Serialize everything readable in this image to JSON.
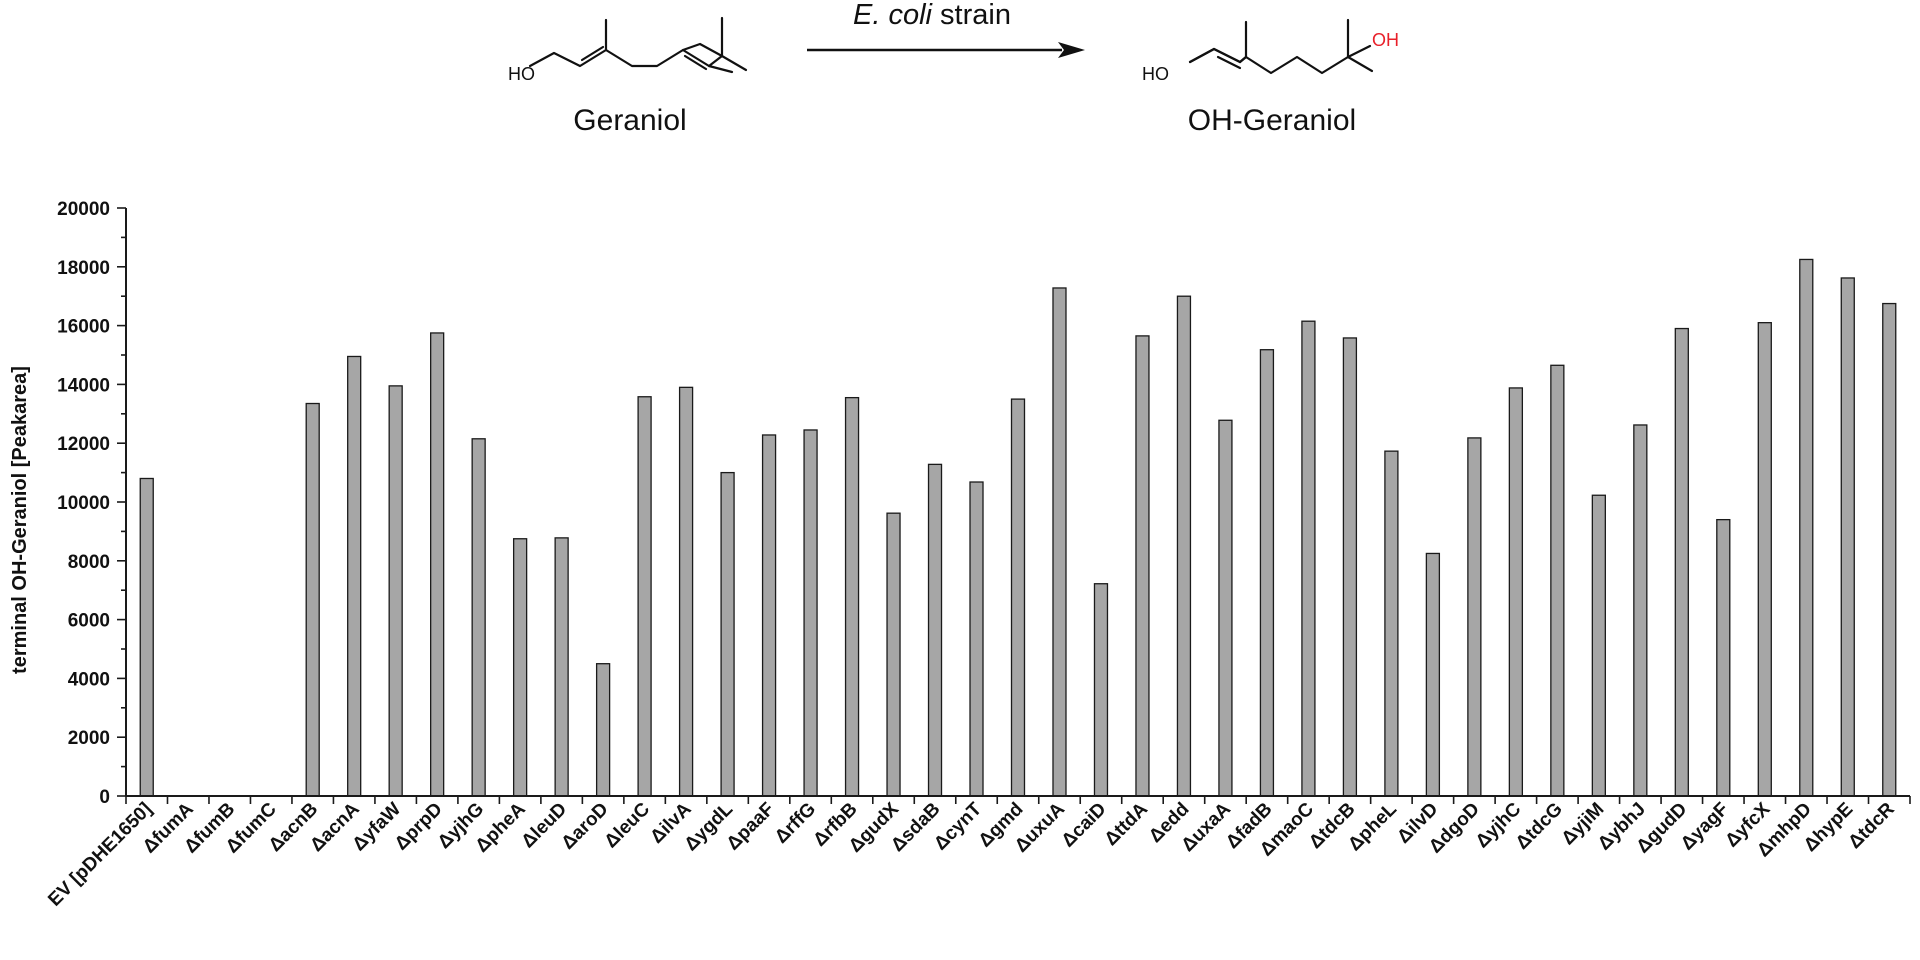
{
  "scheme": {
    "reactant_name": "Geraniol",
    "product_name": "OH-Geraniol",
    "reactant_ho": "HO",
    "product_ho": "HO",
    "product_oh": "OH",
    "arrow_label_italic": "E. coli",
    "arrow_label_rest": " strain",
    "oh_color": "#e8202a"
  },
  "chart_data": {
    "type": "bar",
    "title": "",
    "xlabel": "",
    "ylabel": "terminal OH-Geraniol [Peakarea]",
    "ylim": [
      0,
      20000
    ],
    "yticks": [
      0,
      2000,
      4000,
      6000,
      8000,
      10000,
      12000,
      14000,
      16000,
      18000,
      20000
    ],
    "minor_tick_step": 1000,
    "bar_fill": "#a6a6a6",
    "bar_edge": "#1a1a1a",
    "grid": false,
    "categories": [
      "EV [pDHE1650]",
      "ΔfumA",
      "ΔfumB",
      "ΔfumC",
      "ΔacnB",
      "ΔacnA",
      "ΔyfaW",
      "ΔprpD",
      "ΔyjhG",
      "ΔpheA",
      "ΔleuD",
      "ΔaroD",
      "ΔleuC",
      "ΔilvA",
      "ΔygdL",
      "ΔpaaF",
      "ΔrffG",
      "ΔrfbB",
      "ΔgudX",
      "ΔsdaB",
      "ΔcynT",
      "Δgmd",
      "ΔuxuA",
      "ΔcaiD",
      "ΔttdA",
      "Δedd",
      "ΔuxaA",
      "ΔfadB",
      "ΔmaoC",
      "ΔtdcB",
      "ΔpheL",
      "ΔilvD",
      "ΔdgoD",
      "ΔyjhC",
      "ΔtdcG",
      "ΔyjiM",
      "ΔybhJ",
      "ΔgudD",
      "ΔyagF",
      "ΔyfcX",
      "ΔmhpD",
      "ΔhypE",
      "ΔtdcR"
    ],
    "values": [
      10800,
      0,
      0,
      0,
      13350,
      14950,
      13950,
      15750,
      12150,
      8750,
      8780,
      4500,
      13580,
      13900,
      11000,
      12280,
      12450,
      13550,
      9620,
      11280,
      10680,
      13500,
      17280,
      7220,
      15650,
      17000,
      12780,
      15180,
      16150,
      15580,
      11730,
      8250,
      12180,
      13880,
      14650,
      10230,
      12620,
      15900,
      9400,
      16100,
      18250,
      17620,
      16750
    ]
  }
}
